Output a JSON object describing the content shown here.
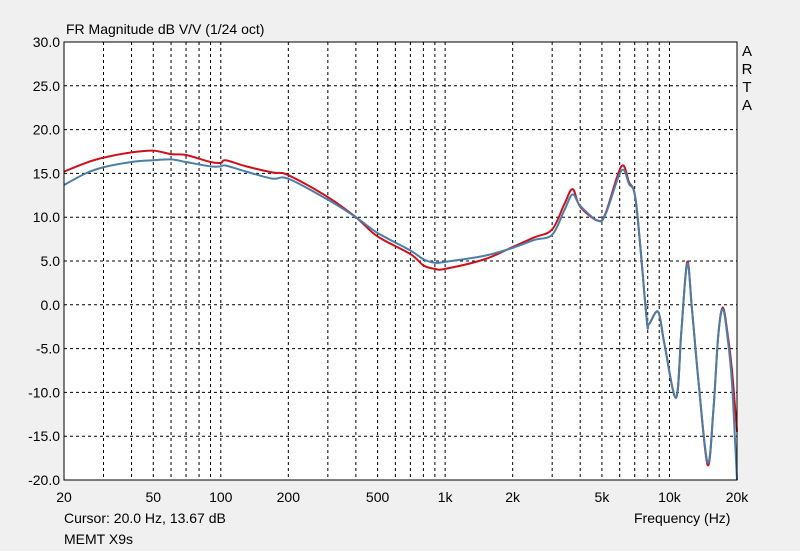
{
  "chart_data": {
    "type": "line",
    "title": "FR Magnitude dB V/V (1/24 oct)",
    "xlabel": "Frequency (Hz)",
    "ylabel": "",
    "x_scale": "log",
    "xlim": [
      20,
      20000
    ],
    "ylim": [
      -20,
      30
    ],
    "grid": true,
    "x_ticks": [
      20,
      50,
      100,
      200,
      500,
      1000,
      2000,
      5000,
      10000,
      20000
    ],
    "x_tick_labels": [
      "20",
      "50",
      "100",
      "200",
      "500",
      "1k",
      "2k",
      "5k",
      "10k",
      "20k"
    ],
    "y_ticks": [
      30,
      25,
      20,
      15,
      10,
      5,
      0,
      -5,
      -10,
      -15,
      -20
    ],
    "y_tick_labels": [
      "30.0",
      "25.0",
      "20.0",
      "15.0",
      "10.0",
      "5.0",
      "0.0",
      "-5.0",
      "-10.0",
      "-15.0",
      "-20.0"
    ],
    "series": [
      {
        "color": "#d0101c",
        "x": [
          20,
          25,
          30,
          40,
          50,
          60,
          70,
          90,
          100,
          105,
          130,
          170,
          200,
          300,
          400,
          500,
          700,
          800,
          900,
          1000,
          1500,
          2000,
          2500,
          3000,
          3400,
          3700,
          4000,
          4800,
          5200,
          6100,
          6600,
          7100,
          7900,
          8100,
          8900,
          9500,
          10700,
          11300,
          12000,
          12600,
          13500,
          14800,
          15700,
          16500,
          17300,
          18200,
          19000,
          20000
        ],
        "y": [
          15.2,
          16.2,
          16.8,
          17.4,
          17.6,
          17.2,
          17.1,
          16.3,
          16.2,
          16.5,
          15.8,
          15.1,
          14.8,
          12.3,
          10.0,
          7.8,
          5.8,
          4.5,
          4.1,
          4.1,
          5.2,
          6.6,
          7.7,
          8.6,
          11.5,
          13.2,
          11.2,
          9.6,
          10.5,
          15.8,
          14.0,
          11.6,
          -1.4,
          -2.2,
          -0.8,
          -4.5,
          -10.6,
          -3.0,
          4.9,
          -0.5,
          -9.0,
          -18.3,
          -12.0,
          -3.5,
          -0.3,
          -3.5,
          -7.5,
          -14.5
        ]
      },
      {
        "color": "#4a7fa8",
        "x": [
          20,
          25,
          30,
          40,
          50,
          60,
          70,
          90,
          100,
          105,
          130,
          170,
          200,
          300,
          400,
          500,
          700,
          800,
          900,
          1000,
          1500,
          2000,
          2500,
          3000,
          3400,
          3700,
          4000,
          4800,
          5200,
          6100,
          6600,
          7100,
          7900,
          8100,
          8900,
          9500,
          10700,
          11300,
          12000,
          12600,
          13500,
          14800,
          15700,
          16500,
          17300,
          18200,
          19000,
          20000
        ],
        "y": [
          13.67,
          15.0,
          15.7,
          16.3,
          16.5,
          16.6,
          16.3,
          15.8,
          15.8,
          15.9,
          15.2,
          14.4,
          14.4,
          12.0,
          10.0,
          8.2,
          6.2,
          5.2,
          4.8,
          4.9,
          5.6,
          6.5,
          7.4,
          8.0,
          10.8,
          12.6,
          11.3,
          9.6,
          10.4,
          15.3,
          13.8,
          11.6,
          -1.4,
          -2.2,
          -0.8,
          -4.5,
          -10.6,
          -3.0,
          4.7,
          -0.5,
          -9.0,
          -18.0,
          -12.0,
          -3.5,
          -0.5,
          -4.0,
          -9.0,
          -20.0
        ]
      }
    ]
  },
  "watermark": [
    "A",
    "R",
    "T",
    "A"
  ],
  "cursor_readout": "Cursor: 20.0 Hz, 13.67 dB",
  "device_name": "MEMT X9s",
  "colors": {
    "background": "#f0f0f0",
    "plot_bg": "#ffffff",
    "grid": "#000000"
  }
}
